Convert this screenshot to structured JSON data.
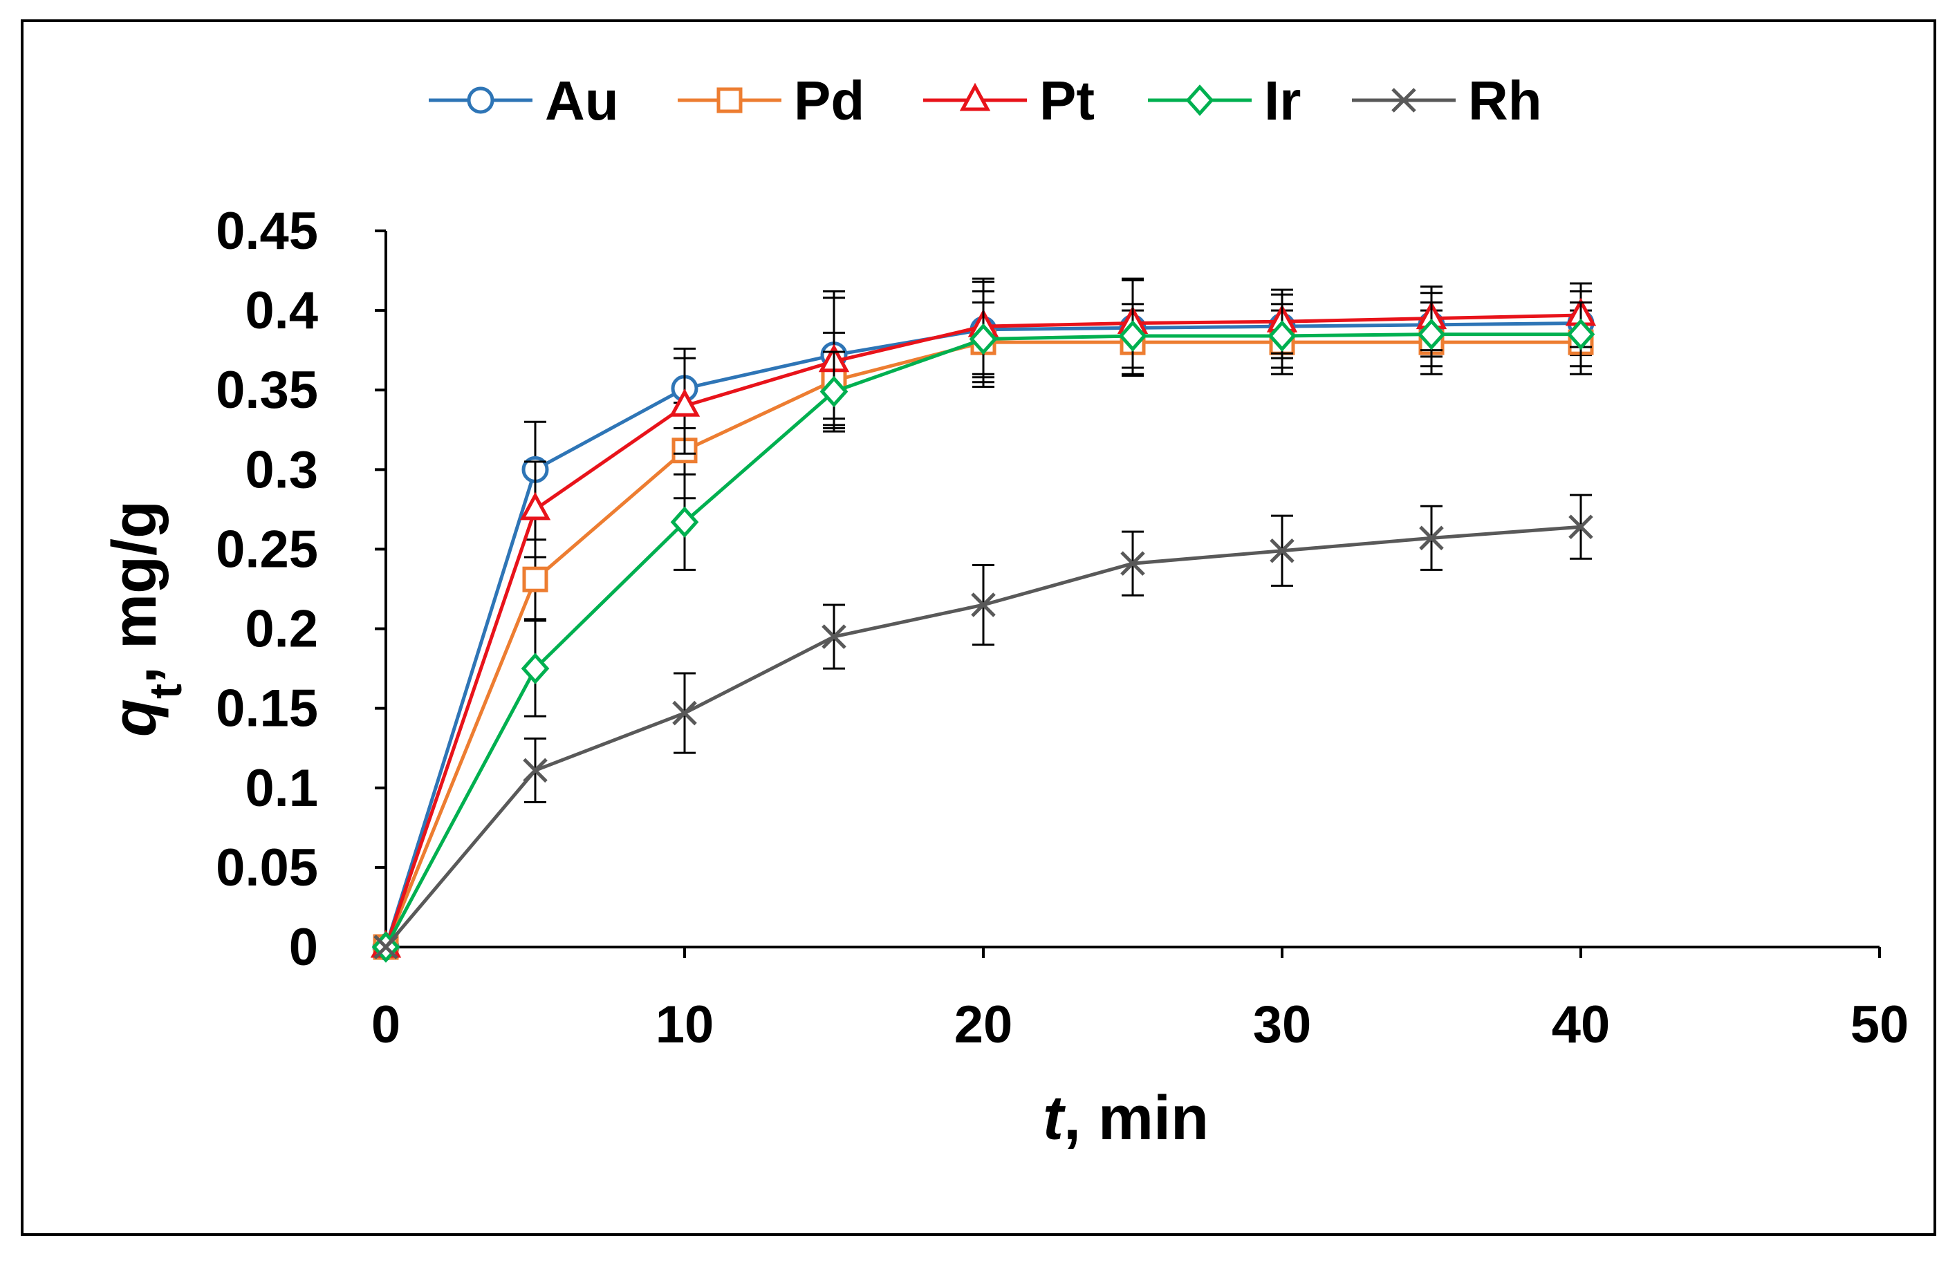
{
  "chart_data": {
    "type": "line",
    "title": "",
    "xlabel": {
      "italic": "t",
      "rest": ", min"
    },
    "ylabel": {
      "italic": "q",
      "subscript": "t",
      "rest": ", mg/g"
    },
    "xlim": [
      0,
      50
    ],
    "ylim": [
      0,
      0.45
    ],
    "x_ticks": [
      "0",
      "10",
      "20",
      "30",
      "40",
      "50"
    ],
    "y_ticks": [
      "0",
      "0.05",
      "0.1",
      "0.15",
      "0.2",
      "0.25",
      "0.3",
      "0.35",
      "0.4",
      "0.45"
    ],
    "x": [
      0,
      5,
      10,
      15,
      20,
      25,
      30,
      35,
      40
    ],
    "grid": false,
    "legend_position": "top",
    "series": [
      {
        "name": "Au",
        "color": "#2E75B6",
        "marker": "circle",
        "values": [
          0,
          0.3,
          0.351,
          0.372,
          0.388,
          0.389,
          0.39,
          0.391,
          0.392
        ],
        "errors": [
          0,
          0.03,
          0.025,
          0.04,
          0.03,
          0.03,
          0.02,
          0.02,
          0.02
        ]
      },
      {
        "name": "Pd",
        "color": "#ED7D31",
        "marker": "square",
        "values": [
          0,
          0.231,
          0.312,
          0.356,
          0.38,
          0.38,
          0.38,
          0.38,
          0.38
        ],
        "errors": [
          0,
          0.025,
          0.03,
          0.03,
          0.025,
          0.02,
          0.02,
          0.02,
          0.02
        ]
      },
      {
        "name": "Pt",
        "color": "#E8131A",
        "marker": "triangle",
        "values": [
          0,
          0.275,
          0.34,
          0.368,
          0.39,
          0.392,
          0.393,
          0.395,
          0.397
        ],
        "errors": [
          0,
          0.03,
          0.03,
          0.04,
          0.03,
          0.028,
          0.02,
          0.02,
          0.02
        ]
      },
      {
        "name": "Ir",
        "color": "#00B050",
        "marker": "diamond",
        "values": [
          0,
          0.175,
          0.267,
          0.349,
          0.382,
          0.384,
          0.384,
          0.385,
          0.385
        ],
        "errors": [
          0,
          0.03,
          0.03,
          0.025,
          0.03,
          0.02,
          0.02,
          0.02,
          0.02
        ]
      },
      {
        "name": "Rh",
        "color": "#595959",
        "marker": "x",
        "values": [
          0,
          0.111,
          0.147,
          0.195,
          0.215,
          0.241,
          0.249,
          0.257,
          0.264
        ],
        "errors": [
          0,
          0.02,
          0.025,
          0.02,
          0.025,
          0.02,
          0.022,
          0.02,
          0.02
        ]
      }
    ]
  }
}
